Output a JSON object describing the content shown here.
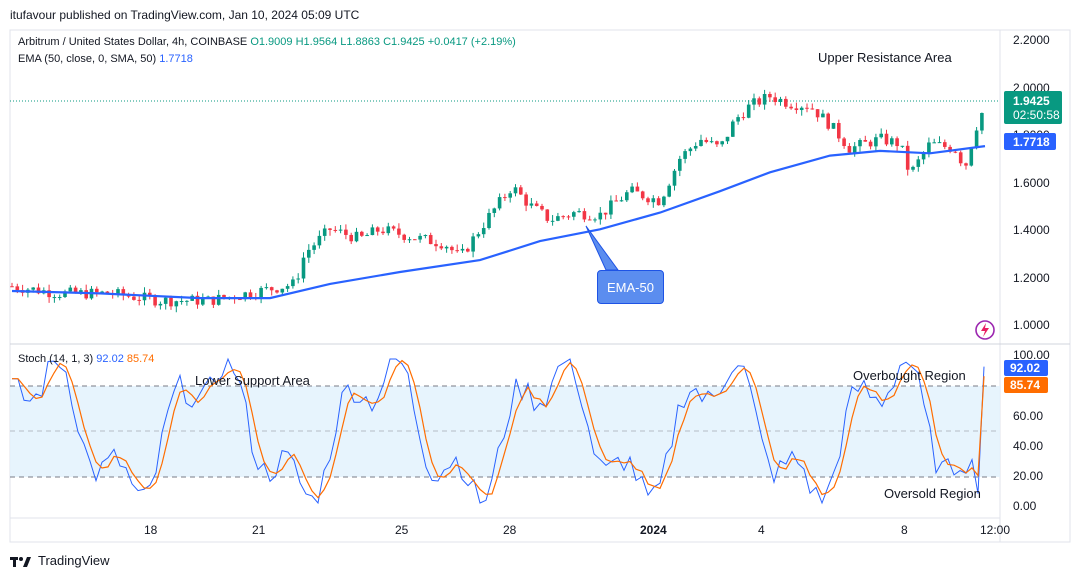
{
  "header": {
    "published": "itufavour published on TradingView.com, Jan 10, 2024 05:09 UTC"
  },
  "legend": {
    "symbol": "Arbitrum / United States Dollar, 4h, COINBASE",
    "open": "O1.9009",
    "high": "H1.9564",
    "low": "L1.8863",
    "close": "C1.9425",
    "change": "+0.0417 (+2.19%)",
    "ema_label": "EMA (50, close, 0, SMA, 50)",
    "ema_value": "1.7718",
    "stoch_label": "Stoch (14, 1, 3)",
    "stoch_k": "92.02",
    "stoch_d": "85.74"
  },
  "annotations": {
    "upper_resistance": "Upper Resistance Area",
    "ema50": "EMA-50",
    "lower_support": "Lower Support Area",
    "overbought": "Overbought Region",
    "oversold": "Oversold Region"
  },
  "price_axis": {
    "ticks": [
      "2.2000",
      "2.0000",
      "1.8000",
      "1.6000",
      "1.4000",
      "1.2000",
      "1.0000"
    ],
    "last_price": "1.9425",
    "countdown": "02:50:58",
    "ema_tag": "1.7718"
  },
  "stoch_axis": {
    "ticks": [
      "100.00",
      "80.00",
      "60.00",
      "40.00",
      "20.00",
      "0.00"
    ],
    "k_tag": "92.02",
    "d_tag": "85.74"
  },
  "time_axis": {
    "labels": [
      "18",
      "21",
      "25",
      "28",
      "2024",
      "4",
      "8",
      "12:00"
    ]
  },
  "footer": {
    "brand": "TradingView"
  },
  "colors": {
    "up": "#089981",
    "down": "#f23645",
    "ema": "#2962ff",
    "stoch_k": "#2962ff",
    "stoch_d": "#ff6d00",
    "band_fill": "#e3f2fd"
  }
}
